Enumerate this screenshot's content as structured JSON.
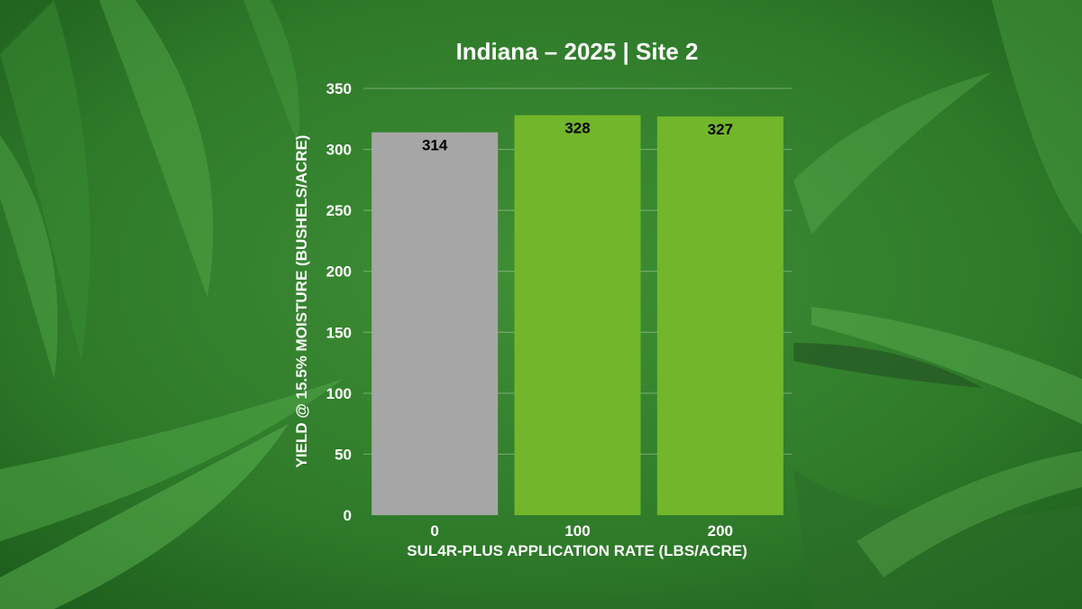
{
  "chart_data": {
    "type": "bar",
    "title": "Indiana – 2025 | Site 2",
    "xlabel": "SUL4R-PLUS APPLICATION RATE (LBS/ACRE)",
    "ylabel": "YIELD @ 15.5% MOISTURE (BUSHELS/ACRE)",
    "categories": [
      "0",
      "100",
      "200"
    ],
    "values": [
      314,
      328,
      327
    ],
    "data_labels": [
      "314",
      "328",
      "327"
    ],
    "bar_colors": [
      "#a6a6a6",
      "#72b62b",
      "#72b62b"
    ],
    "ylim": [
      0,
      350
    ],
    "yticks": [
      "0",
      "50",
      "100",
      "150",
      "200",
      "250",
      "300",
      "350"
    ],
    "ytick_values": [
      0,
      50,
      100,
      150,
      200,
      250,
      300,
      350
    ],
    "grid": true,
    "legend": "none"
  },
  "background": {
    "description_colors": [
      "#2f7d2c",
      "#4a9a3c",
      "#1f5a1f"
    ]
  }
}
